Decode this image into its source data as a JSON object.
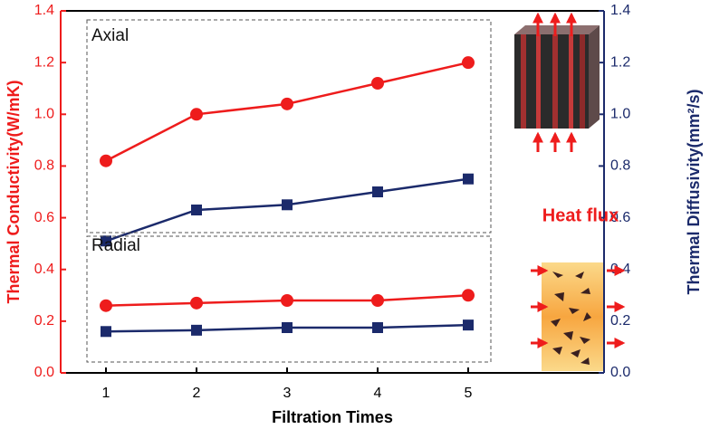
{
  "chart_data": {
    "type": "line",
    "x_label": "Filtration Times",
    "y_label": "Thermal Conductivity(W/mK)",
    "y2_label": "Thermal Diffusivity(mm²/s)",
    "annotations": [
      "Axial",
      "Radial",
      "Heat flux"
    ],
    "x": [
      1,
      2,
      3,
      4,
      5
    ],
    "xlim": [
      0.5,
      6.5
    ],
    "xticks": [
      1,
      2,
      3,
      4,
      5
    ],
    "ylim": [
      0,
      1.4
    ],
    "yticks": [
      {
        "value": 0,
        "label": "0.0"
      },
      {
        "value": 0.2,
        "label": "0.2"
      },
      {
        "value": 0.4,
        "label": "0.4"
      },
      {
        "value": 0.6,
        "label": "0.6"
      },
      {
        "value": 0.8,
        "label": "0.8"
      },
      {
        "value": 1.0,
        "label": "1.0"
      },
      {
        "value": 1.2,
        "label": "1.2"
      },
      {
        "value": 1.4,
        "label": "1.4"
      }
    ],
    "y2lim": [
      0,
      1.4
    ],
    "y2ticks": [
      {
        "value": 0,
        "label": "0.0"
      },
      {
        "value": 0.2,
        "label": "0.2"
      },
      {
        "value": 0.4,
        "label": "0.4"
      },
      {
        "value": 0.6,
        "label": "0.6"
      },
      {
        "value": 0.8,
        "label": "0.8"
      },
      {
        "value": 1.0,
        "label": "1.0"
      },
      {
        "value": 1.2,
        "label": "1.2"
      },
      {
        "value": 1.4,
        "label": "1.4"
      }
    ],
    "y_color": "#ee1c1c",
    "y2_color": "#1b2a6b",
    "series": [
      {
        "color": "#ee1c1c",
        "marker": "circle",
        "axis": "y",
        "values": [
          0.82,
          1.0,
          1.04,
          1.12,
          1.2
        ]
      },
      {
        "color": "#1b2a6b",
        "marker": "square",
        "axis": "y2",
        "values": [
          0.51,
          0.63,
          0.65,
          0.7,
          0.75
        ]
      },
      {
        "color": "#ee1c1c",
        "marker": "circle",
        "axis": "y",
        "values": [
          0.26,
          0.27,
          0.28,
          0.28,
          0.3
        ]
      },
      {
        "color": "#1b2a6b",
        "marker": "square",
        "axis": "y2",
        "values": [
          0.16,
          0.165,
          0.175,
          0.175,
          0.185
        ]
      }
    ]
  }
}
